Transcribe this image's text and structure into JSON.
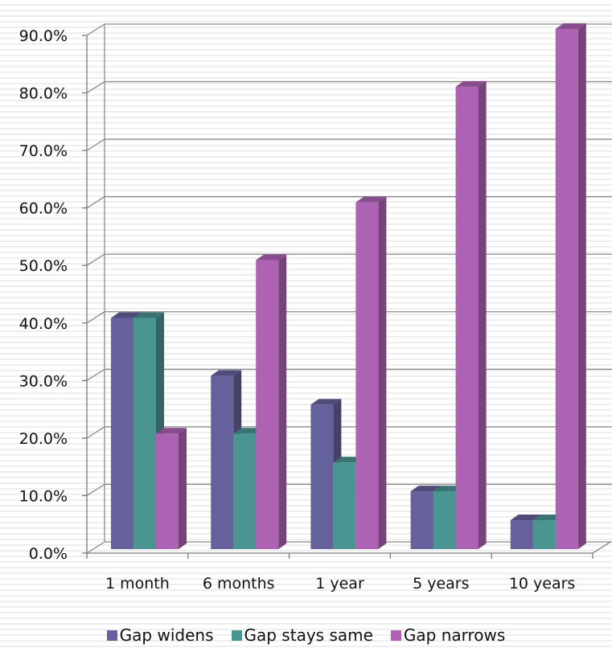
{
  "chart_data": {
    "type": "bar",
    "title": "",
    "xlabel": "",
    "ylabel": "",
    "categories": [
      "1 month",
      "6 months",
      "1 year",
      "5 years",
      "10 years"
    ],
    "series": [
      {
        "name": "Gap widens",
        "values": [
          40,
          30,
          25,
          10,
          5
        ],
        "color": "#65619c"
      },
      {
        "name": "Gap stays same",
        "values": [
          40,
          20,
          15,
          10,
          5
        ],
        "color": "#4a9592"
      },
      {
        "name": "Gap narrows",
        "values": [
          20,
          50,
          60,
          80,
          90
        ],
        "color": "#ad62b4"
      }
    ],
    "ylim": [
      0,
      90
    ],
    "yticks": [
      "0.0%",
      "10.0%",
      "20.0%",
      "30.0%",
      "40.0%",
      "50.0%",
      "60.0%",
      "70.0%",
      "80.0%",
      "90.0%"
    ],
    "grid": true,
    "legend_position": "bottom",
    "style": "3d-clustered-column"
  }
}
